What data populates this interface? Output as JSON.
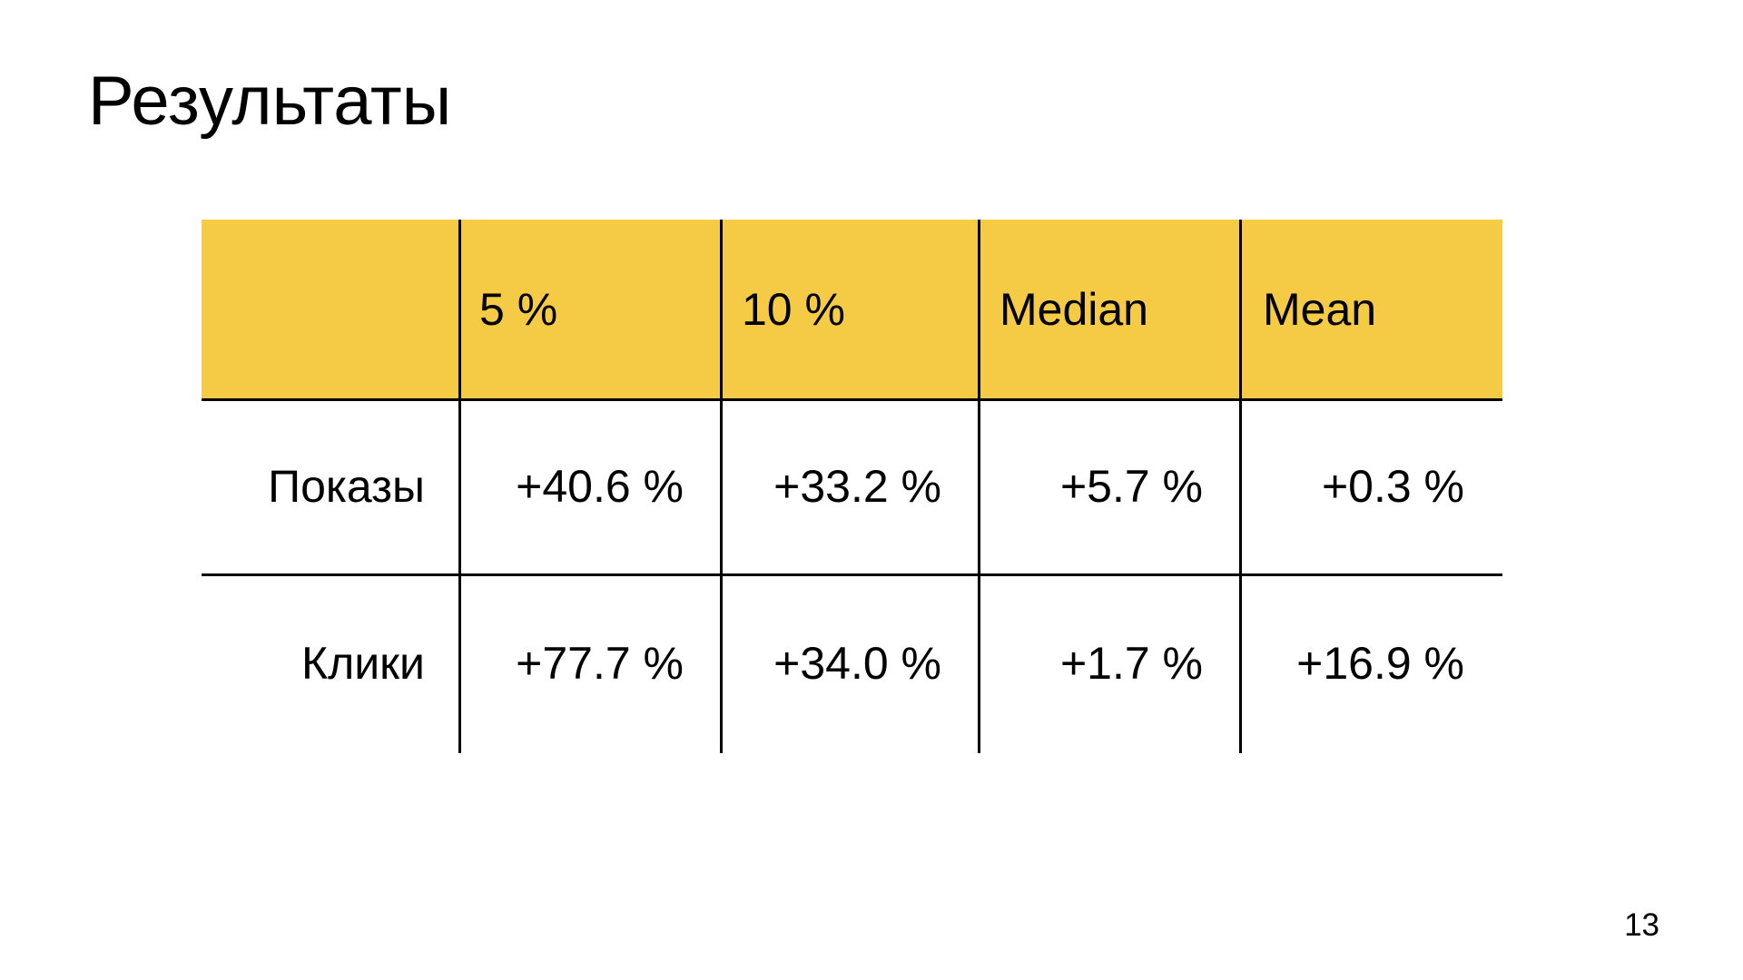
{
  "slide": {
    "title": "Результаты",
    "page_number": "13"
  },
  "colors": {
    "background": "#FFFFFF",
    "header_bg": "#F5CB45",
    "text": "#000000",
    "line": "#000000"
  },
  "chart_data": {
    "type": "table",
    "title": "Результаты",
    "columns": [
      "",
      "5 %",
      "10 %",
      "Median",
      "Mean"
    ],
    "rows": [
      {
        "label": "Показы",
        "values": [
          "+40.6 %",
          "+33.2 %",
          "+5.7 %",
          "+0.3 %"
        ]
      },
      {
        "label": "Клики",
        "values": [
          "+77.7 %",
          "+34.0 %",
          "+1.7 %",
          "+16.9 %"
        ]
      }
    ],
    "layout_hints": {
      "header_fill": "#F5CB45",
      "grid": "inner lines only, no outer border",
      "header_text_align": "left",
      "body_text_align": "right"
    }
  }
}
